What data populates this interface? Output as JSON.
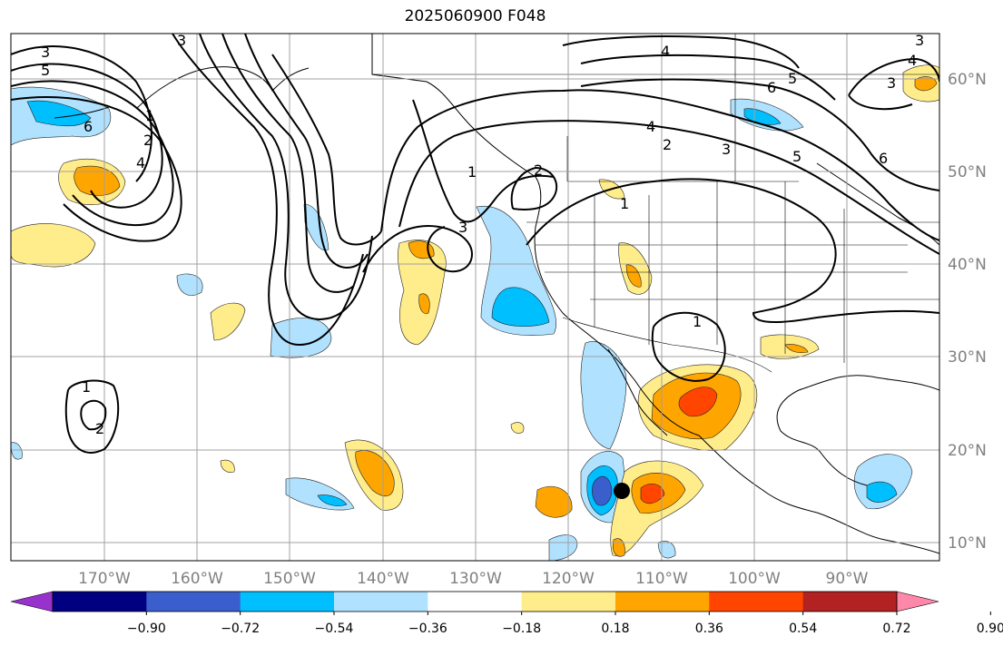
{
  "title": "2025060900 F048",
  "map": {
    "longitude_labels": [
      "170°W",
      "160°W",
      "150°W",
      "140°W",
      "130°W",
      "120°W",
      "110°W",
      "100°W",
      "90°W"
    ],
    "latitude_labels": [
      "60°N",
      "50°N",
      "40°N",
      "30°N",
      "20°N",
      "10°N"
    ],
    "contour_labels": [
      "1",
      "2",
      "3",
      "4",
      "5",
      "6"
    ],
    "gridline_color": "#a0a0a0",
    "contour_color": "#000000",
    "marker": "filled-black-circle"
  },
  "colorbar": {
    "colors": [
      "#9932cc",
      "#000080",
      "#3a5fcd",
      "#00bfff",
      "#b0e2ff",
      "#ffffff",
      "#ffec8b",
      "#ffa500",
      "#ff4500",
      "#b22222",
      "#ff88aa"
    ],
    "tick_labels": [
      "−0.90",
      "−0.72",
      "−0.54",
      "−0.36",
      "−0.18",
      "0.18",
      "0.36",
      "0.54",
      "0.72",
      "0.90"
    ]
  }
}
